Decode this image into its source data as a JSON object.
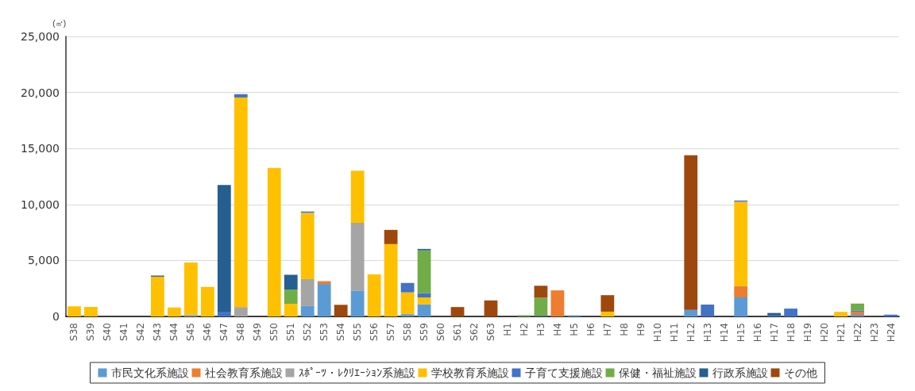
{
  "chart_data": {
    "type": "bar",
    "stacked": true,
    "ylabel": "(㎡)",
    "categories": [
      "S38",
      "S39",
      "S40",
      "S41",
      "S42",
      "S43",
      "S44",
      "S45",
      "S46",
      "S47",
      "S48",
      "S49",
      "S50",
      "S51",
      "S52",
      "S53",
      "S54",
      "S55",
      "S56",
      "S57",
      "S58",
      "S59",
      "S60",
      "S61",
      "S62",
      "S63",
      "H1",
      "H2",
      "H3",
      "H4",
      "H5",
      "H6",
      "H7",
      "H8",
      "H9",
      "H10",
      "H11",
      "H12",
      "H13",
      "H14",
      "H15",
      "H16",
      "H17",
      "H18",
      "H19",
      "H20",
      "H21",
      "H22",
      "H23",
      "H24"
    ],
    "ylim": [
      0,
      25000
    ],
    "yticks": [
      {
        "value": 0,
        "label": "0"
      },
      {
        "value": 5000,
        "label": "5,000"
      },
      {
        "value": 10000,
        "label": "10,000"
      },
      {
        "value": 15000,
        "label": "15,000"
      },
      {
        "value": 20000,
        "label": "20,000"
      },
      {
        "value": 25000,
        "label": "25,000"
      }
    ],
    "grid": "y",
    "legend": "bottom",
    "series": [
      {
        "name": "市民文化系施設",
        "color": "#5b9bd5",
        "values": [
          null,
          null,
          null,
          null,
          null,
          null,
          null,
          null,
          null,
          null,
          null,
          null,
          null,
          null,
          930,
          2900,
          null,
          2310,
          null,
          null,
          200,
          1090,
          null,
          null,
          null,
          null,
          null,
          null,
          null,
          null,
          100,
          null,
          null,
          null,
          null,
          null,
          null,
          590,
          null,
          null,
          1700,
          null,
          null,
          null,
          null,
          null,
          null,
          140,
          null,
          null
        ]
      },
      {
        "name": "社会教育系施設",
        "color": "#ed7d31",
        "values": [
          null,
          null,
          null,
          null,
          null,
          null,
          null,
          null,
          null,
          null,
          null,
          null,
          null,
          null,
          null,
          250,
          null,
          null,
          null,
          null,
          null,
          null,
          null,
          null,
          null,
          null,
          null,
          null,
          null,
          2330,
          null,
          null,
          null,
          null,
          null,
          null,
          null,
          null,
          null,
          null,
          1010,
          null,
          null,
          null,
          null,
          null,
          null,
          290,
          null,
          null
        ]
      },
      {
        "name": "ｽﾎﾟｰﾂ・ﾚｸﾘｴｰｼｮﾝ系施設",
        "color": "#a5a5a5",
        "values": [
          null,
          null,
          null,
          null,
          null,
          null,
          null,
          160,
          null,
          null,
          840,
          null,
          null,
          null,
          2400,
          null,
          null,
          6040,
          null,
          null,
          null,
          null,
          null,
          null,
          null,
          null,
          null,
          null,
          null,
          null,
          null,
          null,
          null,
          null,
          null,
          null,
          null,
          null,
          null,
          null,
          null,
          null,
          null,
          null,
          null,
          null,
          null,
          null,
          null,
          null
        ]
      },
      {
        "name": "学校教育系施設",
        "color": "#ffc000",
        "values": [
          900,
          850,
          null,
          null,
          null,
          3550,
          800,
          4650,
          2630,
          null,
          18710,
          null,
          13270,
          1130,
          5920,
          null,
          null,
          4670,
          3760,
          6460,
          1950,
          610,
          null,
          null,
          null,
          null,
          null,
          null,
          null,
          null,
          null,
          null,
          430,
          null,
          null,
          null,
          null,
          null,
          null,
          null,
          7530,
          null,
          null,
          null,
          null,
          null,
          410,
          null,
          null,
          null
        ]
      },
      {
        "name": "子育て支援施設",
        "color": "#4472c4",
        "values": [
          null,
          null,
          null,
          null,
          null,
          null,
          null,
          null,
          null,
          430,
          300,
          null,
          null,
          null,
          120,
          null,
          null,
          null,
          null,
          null,
          840,
          390,
          null,
          null,
          null,
          null,
          null,
          null,
          70,
          null,
          null,
          null,
          null,
          null,
          null,
          null,
          null,
          null,
          1060,
          null,
          110,
          null,
          80,
          700,
          null,
          null,
          null,
          110,
          null,
          160
        ]
      },
      {
        "name": "保健・福祉施設",
        "color": "#70ad47",
        "values": [
          null,
          null,
          null,
          null,
          null,
          null,
          null,
          null,
          null,
          null,
          null,
          null,
          null,
          1270,
          null,
          null,
          null,
          null,
          null,
          null,
          null,
          3810,
          null,
          null,
          null,
          null,
          null,
          110,
          1600,
          null,
          null,
          null,
          null,
          null,
          null,
          null,
          null,
          null,
          null,
          null,
          null,
          null,
          null,
          null,
          null,
          null,
          null,
          610,
          null,
          null
        ]
      },
      {
        "name": "行政系施設",
        "color": "#255e91",
        "values": [
          null,
          null,
          null,
          null,
          null,
          100,
          null,
          null,
          null,
          11300,
          null,
          null,
          null,
          1320,
          null,
          null,
          null,
          null,
          null,
          null,
          null,
          130,
          null,
          null,
          null,
          null,
          null,
          null,
          null,
          null,
          null,
          null,
          null,
          null,
          null,
          null,
          null,
          null,
          null,
          null,
          null,
          null,
          230,
          null,
          null,
          null,
          null,
          null,
          null,
          null
        ]
      },
      {
        "name": "その他",
        "color": "#9e480e",
        "values": [
          null,
          null,
          null,
          null,
          null,
          null,
          null,
          null,
          null,
          null,
          null,
          null,
          null,
          null,
          null,
          null,
          1040,
          null,
          null,
          1270,
          null,
          null,
          null,
          840,
          null,
          1430,
          null,
          null,
          1070,
          null,
          null,
          null,
          1470,
          null,
          null,
          null,
          null,
          13810,
          null,
          null,
          null,
          null,
          null,
          null,
          null,
          null,
          null,
          null,
          null,
          null
        ]
      }
    ]
  }
}
